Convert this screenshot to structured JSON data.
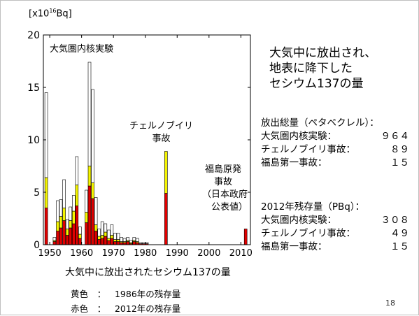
{
  "chart_data": {
    "type": "bar",
    "stacked": true,
    "unit_label": "[x10",
    "unit_exp": "16",
    "unit_tail": "Bq]",
    "xlim": [
      1948,
      2013
    ],
    "ylim": [
      0,
      20
    ],
    "x_ticks": [
      1950,
      1960,
      1970,
      1980,
      1990,
      2000,
      2010
    ],
    "y_ticks": [
      0,
      5,
      10,
      15,
      20
    ],
    "grid": false,
    "x": [
      1945,
      1946,
      1951,
      1952,
      1953,
      1954,
      1955,
      1956,
      1957,
      1958,
      1959,
      1960,
      1961,
      1962,
      1963,
      1964,
      1965,
      1966,
      1967,
      1968,
      1969,
      1970,
      1971,
      1972,
      1973,
      1974,
      1975,
      1976,
      1977,
      1978,
      1979,
      1980,
      1986,
      2011
    ],
    "series": [
      {
        "name": "赤色",
        "color": "#e00000",
        "values": [
          3.5,
          0,
          0.3,
          1.3,
          1.6,
          2.3,
          0.9,
          1.6,
          2.0,
          3.7,
          0.6,
          0.0,
          2.1,
          5.6,
          4.4,
          1.3,
          0.5,
          0.6,
          0.8,
          0.4,
          0.6,
          0.3,
          0.3,
          0.2,
          0.2,
          0.3,
          0.1,
          0.3,
          0.2,
          0.1,
          0.1,
          0.1,
          4.9,
          1.5
        ]
      },
      {
        "name": "黄色",
        "color": "#f5f500",
        "values": [
          2.9,
          0,
          0.1,
          0.9,
          1.1,
          1.2,
          0.6,
          0.7,
          1.2,
          2.0,
          0.4,
          0.0,
          1.0,
          1.9,
          1.5,
          0.6,
          0.3,
          0.3,
          0.4,
          0.2,
          0.3,
          0.2,
          0.2,
          0.1,
          0.1,
          0.1,
          0.1,
          0.1,
          0.1,
          0.0,
          0.0,
          0.0,
          4.0,
          0.0
        ]
      },
      {
        "name": "白",
        "color": "#ffffff",
        "values": [
          8.1,
          0,
          0.3,
          2.0,
          1.6,
          2.7,
          0.9,
          1.3,
          1.5,
          2.7,
          0.7,
          0.0,
          2.1,
          9.9,
          8.9,
          2.6,
          0.7,
          1.3,
          0.8,
          0.8,
          1.0,
          0.6,
          0.6,
          0.4,
          0.3,
          0.3,
          0.2,
          0.3,
          0.3,
          0.1,
          0.1,
          0.1,
          0.0,
          0.0
        ]
      }
    ],
    "annotations": {
      "atmospheric": "大気圏内核実験",
      "chernobyl": [
        "チェルノブイリ",
        "事故"
      ],
      "fukushima": [
        "福島原発",
        "事故",
        "（日本政府",
        "公表値）"
      ]
    }
  },
  "title_lines": [
    "大気中に放出され、",
    "地表に降下した",
    "セシウム137の量"
  ],
  "release_total": {
    "heading": "放出総量（ペタベクレル）：",
    "rows": [
      {
        "label": "大気圏内核実験：",
        "value": "９６４"
      },
      {
        "label": "チェルノブイリ事故：",
        "value": "８９"
      },
      {
        "label": "福島第一事故：",
        "value": "１５"
      }
    ]
  },
  "residual_2012": {
    "heading": "2012年残存量（PBq）：",
    "rows": [
      {
        "label": "大気圏内核実験：",
        "value": "３０８"
      },
      {
        "label": "チェルノブイリ事故：",
        "value": "４９"
      },
      {
        "label": "福島第一事故：",
        "value": "１５"
      }
    ]
  },
  "caption": "大気中に放出されたセシウム137の量",
  "legend": [
    {
      "color_name": "黄色",
      "sep": "：",
      "desc": "1986年の残存量"
    },
    {
      "color_name": "赤色",
      "sep": "：",
      "desc": "2012年の残存量"
    }
  ],
  "page_number": "18"
}
